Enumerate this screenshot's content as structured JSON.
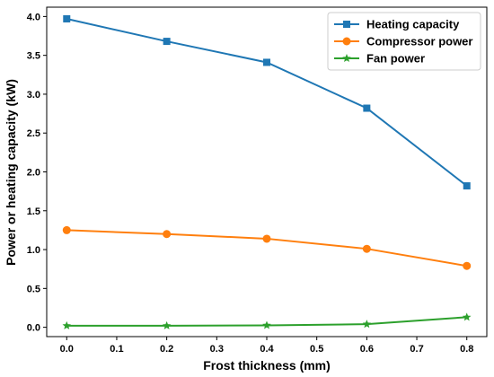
{
  "chart_data": {
    "type": "line",
    "xlabel": "Frost thickness (mm)",
    "ylabel": "Power or heating capacity (kW)",
    "xlim": [
      -0.04,
      0.84
    ],
    "ylim": [
      -0.12,
      4.12
    ],
    "xticks": [
      "0.0",
      "0.1",
      "0.2",
      "0.3",
      "0.4",
      "0.5",
      "0.6",
      "0.7",
      "0.8"
    ],
    "yticks": [
      "0.0",
      "0.5",
      "1.0",
      "1.5",
      "2.0",
      "2.5",
      "3.0",
      "3.5",
      "4.0"
    ],
    "x": [
      0.0,
      0.2,
      0.4,
      0.6,
      0.8
    ],
    "series": [
      {
        "name": "Heating capacity",
        "color": "#1f77b4",
        "marker": "square",
        "values": [
          3.97,
          3.68,
          3.41,
          2.82,
          1.82
        ]
      },
      {
        "name": "Compressor power",
        "color": "#ff7f0e",
        "marker": "circle",
        "values": [
          1.25,
          1.2,
          1.14,
          1.01,
          0.79
        ]
      },
      {
        "name": "Fan power",
        "color": "#2ca02c",
        "marker": "star",
        "values": [
          0.02,
          0.02,
          0.025,
          0.04,
          0.13
        ]
      }
    ],
    "legend_position": "top-right",
    "grid": false
  }
}
